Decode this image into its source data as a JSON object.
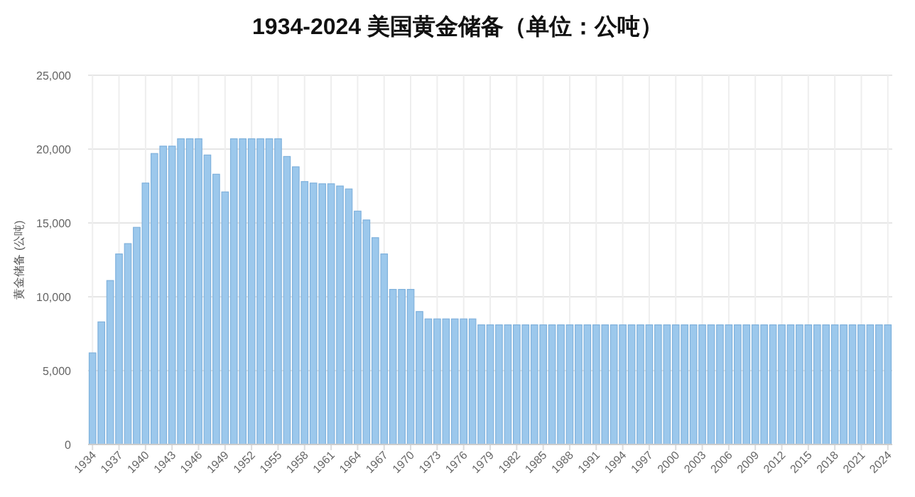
{
  "chart_data": {
    "type": "bar",
    "title": "1934-2024 美国黄金储备（单位：公吨）",
    "ylabel": "黄金储备 (公吨)",
    "categories": [
      "1934",
      null,
      null,
      "1937",
      null,
      null,
      "1940",
      null,
      null,
      "1943",
      null,
      null,
      "1946",
      null,
      null,
      "1949",
      null,
      null,
      "1952",
      null,
      null,
      "1955",
      null,
      null,
      "1958",
      null,
      null,
      "1961",
      null,
      null,
      "1964",
      null,
      null,
      "1967",
      null,
      null,
      "1970",
      null,
      null,
      "1973",
      null,
      null,
      "1976",
      null,
      null,
      "1979",
      null,
      null,
      "1982",
      null,
      null,
      "1985",
      null,
      null,
      "1988",
      null,
      null,
      "1991",
      null,
      null,
      "1994",
      null,
      null,
      "1997",
      null,
      null,
      "2000",
      null,
      null,
      "2003",
      null,
      null,
      "2006",
      null,
      null,
      "2009",
      null,
      null,
      "2012",
      null,
      null,
      "2015",
      null,
      null,
      "2018",
      null,
      null,
      "2021",
      null,
      null,
      "2024"
    ],
    "values": [
      6200,
      8300,
      11100,
      12900,
      13600,
      14700,
      17700,
      19700,
      20200,
      20200,
      20700,
      20700,
      20700,
      19600,
      18300,
      17100,
      20700,
      20700,
      20700,
      20700,
      20700,
      20700,
      19500,
      18800,
      17800,
      17700,
      17650,
      17650,
      17500,
      17300,
      15800,
      15200,
      14000,
      12900,
      10500,
      10500,
      10500,
      9000,
      8500,
      8500,
      8500,
      8500,
      8500,
      8500,
      8100,
      8100,
      8100,
      8100,
      8100,
      8100,
      8100,
      8100,
      8100,
      8100,
      8100,
      8100,
      8100,
      8100,
      8100,
      8100,
      8100,
      8100,
      8100,
      8100,
      8100,
      8100,
      8100,
      8100,
      8100,
      8100,
      8100,
      8100,
      8100,
      8100,
      8100,
      8100,
      8100,
      8100,
      8100,
      8100,
      8100,
      8100,
      8100,
      8100,
      8100,
      8100,
      8100,
      8100,
      8100,
      8100,
      8100
    ],
    "color": "#9cc8ec",
    "ylim": [
      0,
      25000
    ],
    "yticks": [
      0,
      {
        "value": 5000,
        "label": "5,000"
      },
      {
        "value": 10000,
        "label": "10,000"
      },
      {
        "value": 15000,
        "label": "15,000"
      },
      {
        "value": 20000,
        "label": "20,000"
      },
      {
        "value": 25000,
        "label": "25,000"
      }
    ],
    "grid": true
  }
}
